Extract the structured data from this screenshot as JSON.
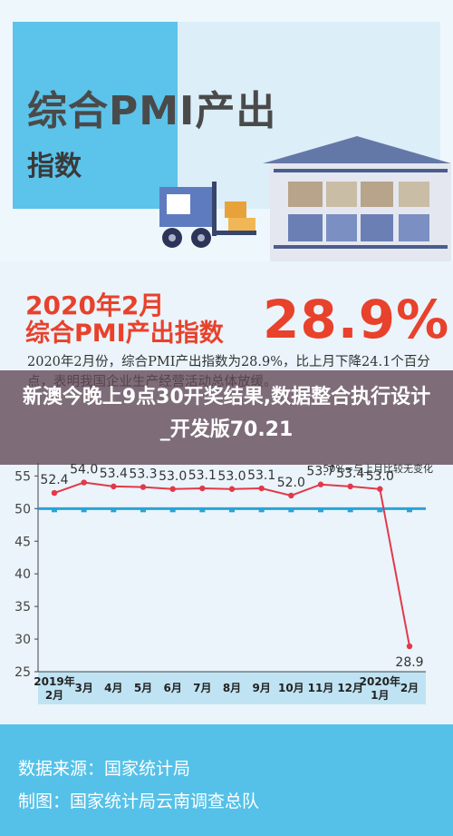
{
  "header": {
    "title_line1": "综合PMI产出",
    "title_line2": "指数"
  },
  "headline": {
    "date": "2020年2月",
    "subtitle": "综合PMI产出指数",
    "value": "28.9%"
  },
  "description": "2020年2月份，综合PMI产出指数为28.9%，比上月下降24.1个百分点，表明我国企业生产经营活动总体放缓。",
  "overlay_title": "新澳今晚上9点30开奖结果,数据整合执行设计_开发版70.21",
  "chart_data": {
    "type": "line",
    "categories": [
      "2019年\n2月",
      "3月",
      "4月",
      "5月",
      "6月",
      "7月",
      "8月",
      "9月",
      "10月",
      "11月",
      "12月",
      "2020年\n1月",
      "2月"
    ],
    "values": [
      52.4,
      54.0,
      53.4,
      53.3,
      53.0,
      53.1,
      53.0,
      53.1,
      52.0,
      53.7,
      53.4,
      53.0,
      28.9
    ],
    "value_labels": [
      "52.4",
      "54.0",
      "53.4",
      "53.3",
      "53.0",
      "53.1",
      "53.0",
      "53.1",
      "52.0",
      "53.7",
      "53.4",
      "53.0",
      "28.9"
    ],
    "yticks": [
      "25",
      "30",
      "35",
      "40",
      "45",
      "50",
      "55"
    ],
    "ylim": [
      25,
      57
    ],
    "reference_line": 50,
    "legend": "50%=与上月比较无变化",
    "colors": {
      "line": "#e2394a",
      "reference": "#2aa3d6",
      "axis_bg": "#bfe3f3"
    }
  },
  "footer": {
    "source": "数据来源：国家统计局",
    "maker": "制图：国家统计局云南调查总队"
  }
}
